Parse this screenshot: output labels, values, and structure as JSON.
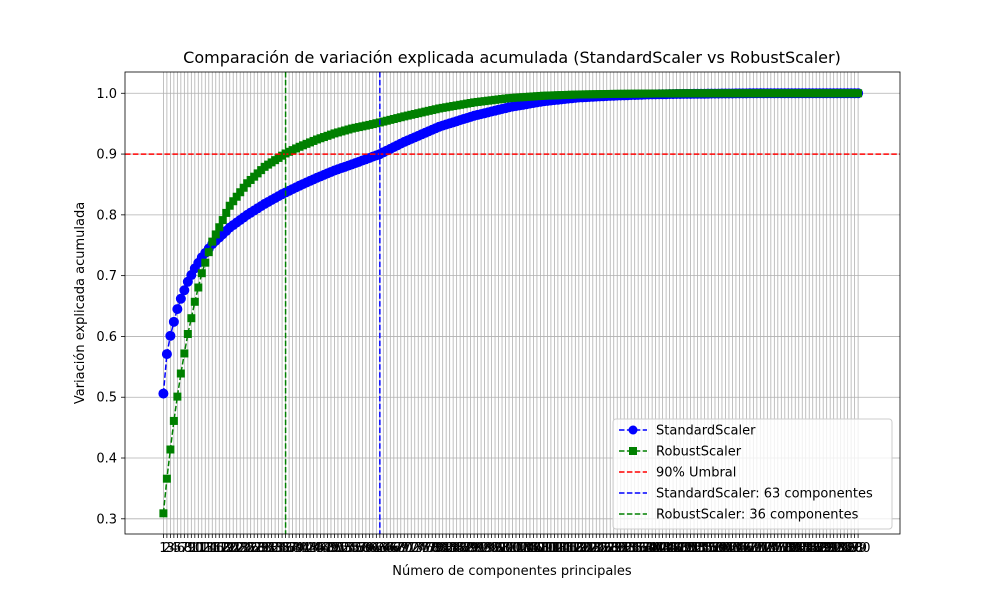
{
  "chart_data": {
    "type": "line",
    "title": "Comparación de variación explicada acumulada (StandardScaler vs RobustScaler)",
    "xlabel": "Número de componentes principales",
    "ylabel": "Variación explicada acumulada",
    "xlim": [
      -10,
      212
    ],
    "ylim": [
      0.275,
      1.035
    ],
    "n_components": 200,
    "y_ticks": [
      0.3,
      0.4,
      0.5,
      0.6,
      0.7,
      0.8,
      0.9,
      1.0
    ],
    "y_tick_labels": [
      "0.3",
      "0.4",
      "0.5",
      "0.6",
      "0.7",
      "0.8",
      "0.9",
      "1.0"
    ],
    "grid": true,
    "legend_position": "lower-right",
    "series": [
      {
        "name": "StandardScaler",
        "color": "#0000ff",
        "marker": "circle",
        "linestyle": "dashed",
        "x": [
          1,
          2,
          3,
          4,
          5,
          6,
          7,
          8,
          10,
          12,
          15,
          20,
          25,
          30,
          35,
          40,
          45,
          50,
          55,
          63,
          70,
          80,
          90,
          100,
          110,
          120,
          130,
          140,
          150,
          160,
          170,
          180,
          190,
          200
        ],
        "values": [
          0.506,
          0.571,
          0.601,
          0.624,
          0.645,
          0.662,
          0.676,
          0.69,
          0.712,
          0.73,
          0.752,
          0.779,
          0.8,
          0.818,
          0.834,
          0.848,
          0.861,
          0.873,
          0.883,
          0.9,
          0.92,
          0.945,
          0.963,
          0.977,
          0.987,
          0.993,
          0.996,
          0.998,
          0.999,
          0.9995,
          1.0,
          1.0,
          1.0,
          1.0
        ]
      },
      {
        "name": "RobustScaler",
        "color": "#008000",
        "marker": "square",
        "linestyle": "dashed",
        "x": [
          1,
          2,
          3,
          4,
          5,
          6,
          7,
          8,
          9,
          10,
          12,
          15,
          20,
          25,
          30,
          36,
          40,
          45,
          50,
          55,
          60,
          63,
          70,
          80,
          90,
          100,
          110,
          120,
          130,
          140,
          150,
          160,
          170,
          180,
          190,
          200
        ],
        "values": [
          0.309,
          0.366,
          0.414,
          0.461,
          0.501,
          0.539,
          0.572,
          0.604,
          0.63,
          0.657,
          0.704,
          0.756,
          0.815,
          0.852,
          0.879,
          0.901,
          0.912,
          0.924,
          0.934,
          0.942,
          0.948,
          0.952,
          0.962,
          0.975,
          0.985,
          0.992,
          0.996,
          0.998,
          0.999,
          0.9995,
          1.0,
          1.0,
          1.0,
          1.0,
          1.0,
          1.0
        ]
      }
    ],
    "reference_lines": [
      {
        "orientation": "horizontal",
        "value": 0.9,
        "color": "#ff0000",
        "linestyle": "dashed",
        "label": "90% Umbral"
      },
      {
        "orientation": "vertical",
        "value": 63,
        "color": "#0000ff",
        "linestyle": "dashed",
        "label": "StandardScaler: 63 componentes"
      },
      {
        "orientation": "vertical",
        "value": 36,
        "color": "#008000",
        "linestyle": "dashed",
        "label": "RobustScaler: 36 componentes"
      }
    ]
  }
}
